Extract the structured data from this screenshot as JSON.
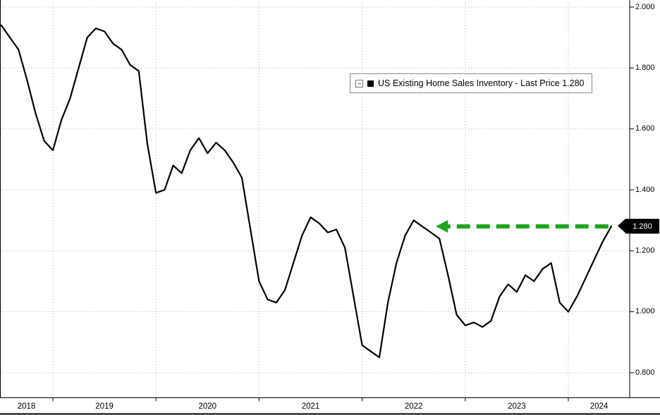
{
  "chart_data": {
    "type": "line",
    "title": "US Existing Home Sales Inventory",
    "series_name": "US Existing Home Sales Inventory",
    "legend_label": "US Existing Home Sales Inventory - Last Price 1.280",
    "last_price": 1.28,
    "last_price_label": "1.280",
    "series_color": "#000000",
    "grid": {
      "style": "dotted",
      "color": "#b0b0b0"
    },
    "y_axis": {
      "side": "right",
      "min": 0.8,
      "max": 2.0,
      "step": 0.2,
      "tick_labels": [
        "2.000",
        "1.800",
        "1.600",
        "1.400",
        "1.200",
        "1.000",
        "0.800"
      ]
    },
    "x_axis": {
      "tick_labels": [
        "2018",
        "2019",
        "2020",
        "2021",
        "2022",
        "2023",
        "2024"
      ]
    },
    "annotation_arrow": {
      "value": 1.28,
      "from_month": "2024-05",
      "to_month": "2022-10",
      "color": "#1da51d",
      "style": "dashed",
      "direction": "left"
    },
    "x": [
      "2018-07",
      "2018-08",
      "2018-09",
      "2018-10",
      "2018-11",
      "2018-12",
      "2019-01",
      "2019-02",
      "2019-03",
      "2019-04",
      "2019-05",
      "2019-06",
      "2019-07",
      "2019-08",
      "2019-09",
      "2019-10",
      "2019-11",
      "2019-12",
      "2020-01",
      "2020-02",
      "2020-03",
      "2020-04",
      "2020-05",
      "2020-06",
      "2020-07",
      "2020-08",
      "2020-09",
      "2020-10",
      "2020-11",
      "2020-12",
      "2021-01",
      "2021-02",
      "2021-03",
      "2021-04",
      "2021-05",
      "2021-06",
      "2021-07",
      "2021-08",
      "2021-09",
      "2021-10",
      "2021-11",
      "2021-12",
      "2022-01",
      "2022-02",
      "2022-03",
      "2022-04",
      "2022-05",
      "2022-06",
      "2022-07",
      "2022-08",
      "2022-09",
      "2022-10",
      "2022-11",
      "2022-12",
      "2023-01",
      "2023-02",
      "2023-03",
      "2023-04",
      "2023-05",
      "2023-06",
      "2023-07",
      "2023-08",
      "2023-09",
      "2023-10",
      "2023-11",
      "2023-12",
      "2024-01",
      "2024-02",
      "2024-03",
      "2024-04",
      "2024-05",
      "2024-06"
    ],
    "values": [
      1.94,
      1.9,
      1.86,
      1.76,
      1.65,
      1.56,
      1.53,
      1.63,
      1.7,
      1.8,
      1.9,
      1.93,
      1.92,
      1.88,
      1.86,
      1.81,
      1.79,
      1.55,
      1.39,
      1.4,
      1.48,
      1.455,
      1.53,
      1.57,
      1.52,
      1.555,
      1.53,
      1.49,
      1.44,
      1.27,
      1.1,
      1.04,
      1.03,
      1.07,
      1.16,
      1.25,
      1.31,
      1.29,
      1.26,
      1.27,
      1.21,
      1.05,
      0.89,
      0.87,
      0.85,
      1.03,
      1.16,
      1.25,
      1.3,
      1.28,
      1.26,
      1.24,
      1.12,
      0.99,
      0.955,
      0.965,
      0.95,
      0.97,
      1.05,
      1.09,
      1.065,
      1.12,
      1.1,
      1.14,
      1.16,
      1.03,
      1.0,
      1.05,
      1.11,
      1.17,
      1.23,
      1.28
    ]
  }
}
